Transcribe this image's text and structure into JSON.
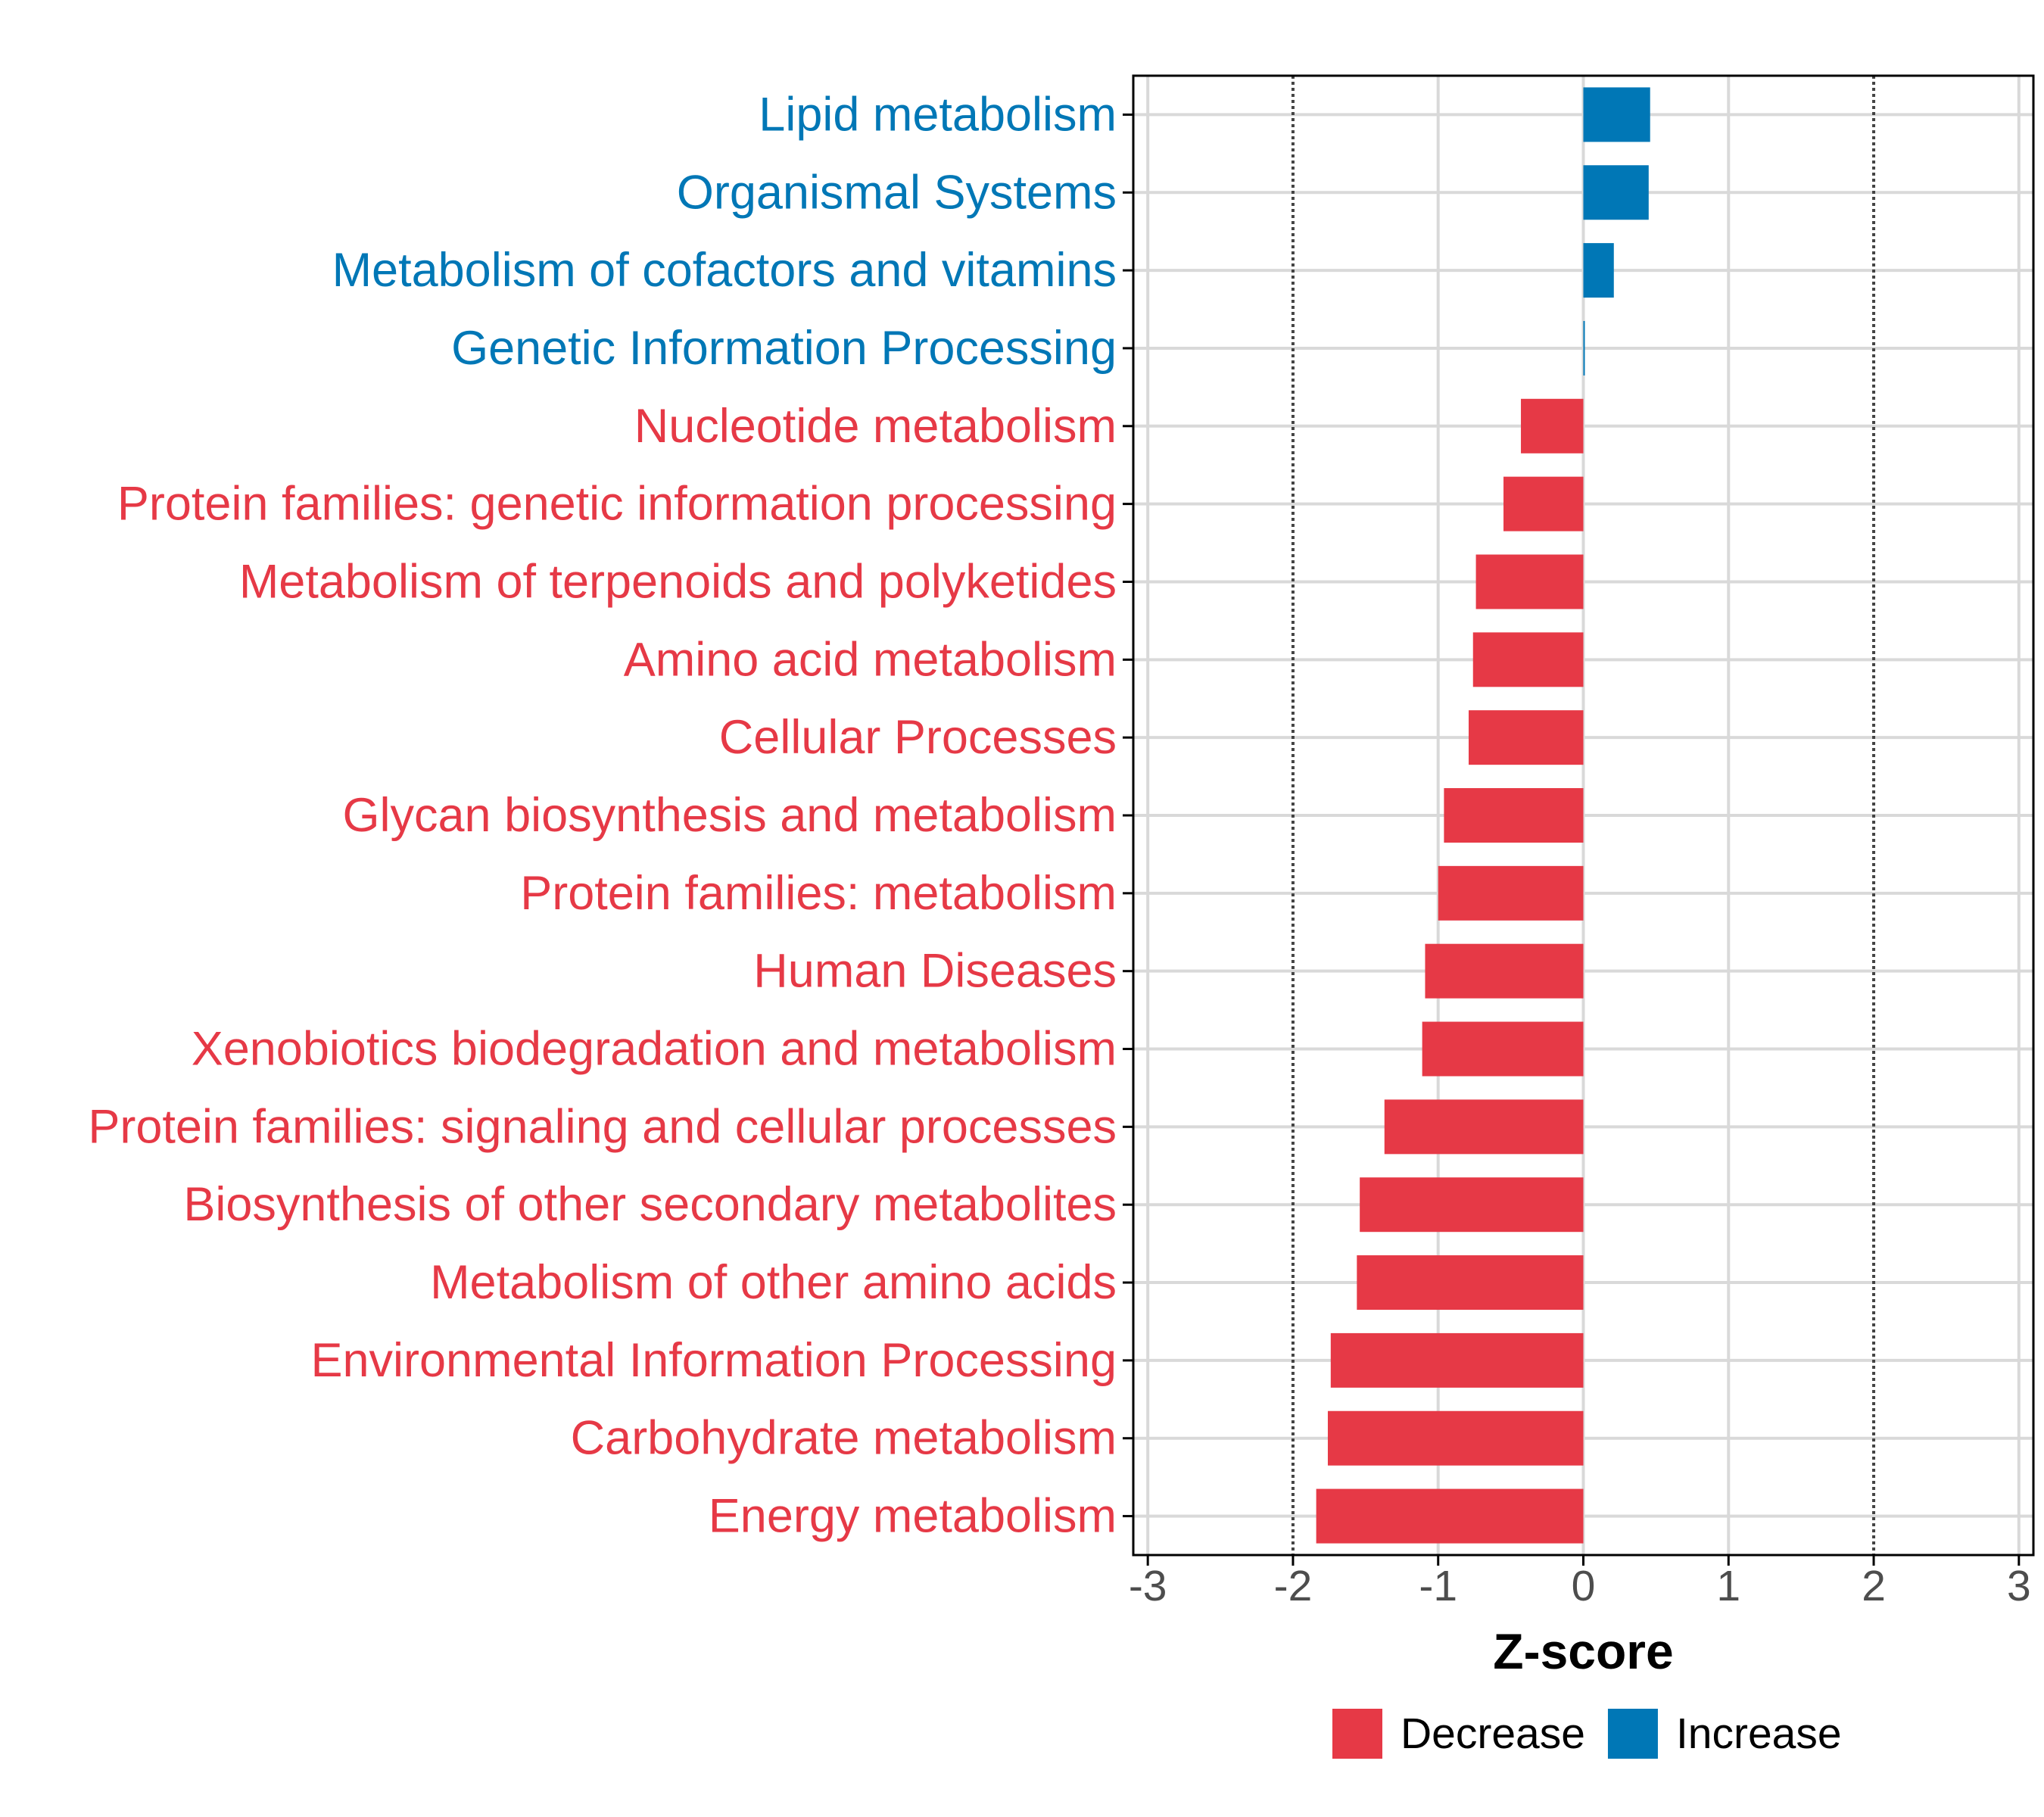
{
  "chart_data": {
    "type": "bar",
    "orientation": "horizontal",
    "title": "",
    "xlabel": "Z-score",
    "ylabel": "",
    "xlim": [
      -3.1,
      3.1
    ],
    "xticks": [
      -3,
      -2,
      -1,
      0,
      1,
      2,
      3
    ],
    "xtick_labels": [
      "-3",
      "-2",
      "-1",
      "0",
      "1",
      "2",
      "3"
    ],
    "reference_lines": [
      -2,
      2
    ],
    "grid": true,
    "categories": [
      "Lipid metabolism",
      "Organismal Systems",
      "Metabolism of cofactors and vitamins",
      "Genetic Information Processing",
      "Nucleotide metabolism",
      "Protein families: genetic information processing",
      "Metabolism of terpenoids and polyketides",
      "Amino acid metabolism",
      "Cellular Processes",
      "Glycan biosynthesis and metabolism",
      "Protein families: metabolism",
      "Human Diseases",
      "Xenobiotics biodegradation and metabolism",
      "Protein families: signaling and cellular processes",
      "Biosynthesis of other secondary metabolites",
      "Metabolism of other amino acids",
      "Environmental Information Processing",
      "Carbohydrate metabolism",
      "Energy metabolism"
    ],
    "values": [
      0.46,
      0.45,
      0.21,
      0.01,
      -0.43,
      -0.55,
      -0.74,
      -0.76,
      -0.79,
      -0.96,
      -1.0,
      -1.09,
      -1.11,
      -1.37,
      -1.54,
      -1.56,
      -1.74,
      -1.76,
      -1.84
    ],
    "groups": [
      "Increase",
      "Increase",
      "Increase",
      "Increase",
      "Decrease",
      "Decrease",
      "Decrease",
      "Decrease",
      "Decrease",
      "Decrease",
      "Decrease",
      "Decrease",
      "Decrease",
      "Decrease",
      "Decrease",
      "Decrease",
      "Decrease",
      "Decrease",
      "Decrease"
    ],
    "legend": [
      {
        "name": "Decrease",
        "color": "#E63946"
      },
      {
        "name": "Increase",
        "color": "#0077B6"
      }
    ],
    "legend_position": "bottom"
  },
  "colors": {
    "decrease": "#E63946",
    "increase": "#0077B6",
    "grid": "#d9d9d9",
    "axis": "#000000",
    "reference": "#444444"
  }
}
